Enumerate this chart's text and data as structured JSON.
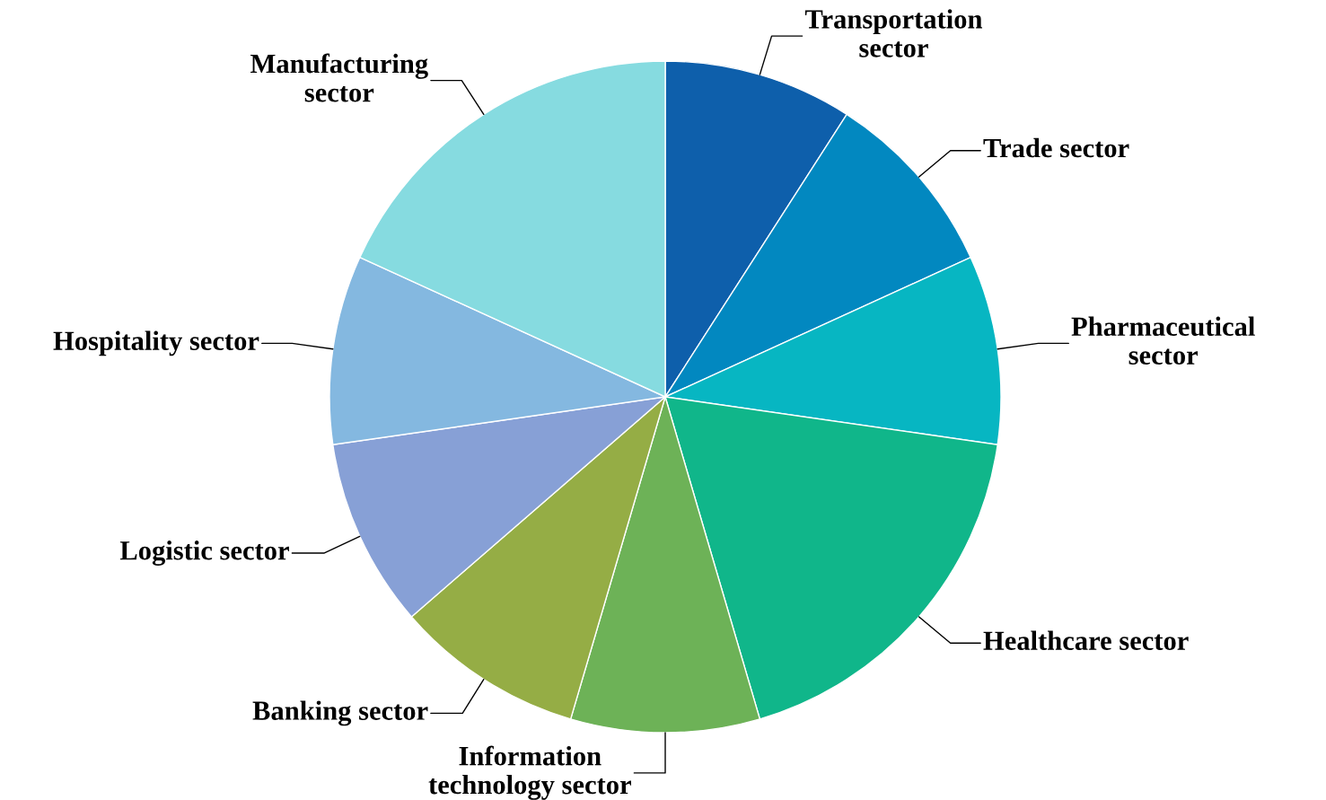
{
  "chart_data": {
    "type": "pie",
    "categories": [
      "Transportation\nsector",
      "Trade sector",
      "Pharmaceutical\nsector",
      "Healthcare sector",
      "Information\ntechnology sector",
      "Banking sector",
      "Logistic sector",
      "Hospitality sector",
      "Manufacturing\nsector"
    ],
    "values": [
      9.09,
      9.09,
      9.09,
      18.18,
      9.09,
      9.09,
      9.09,
      9.09,
      18.18
    ],
    "colors": [
      "#0e5fab",
      "#0288c0",
      "#07b6c2",
      "#10b68a",
      "#6db257",
      "#95ad45",
      "#87a0d6",
      "#84b8e0",
      "#86dbe0"
    ]
  }
}
